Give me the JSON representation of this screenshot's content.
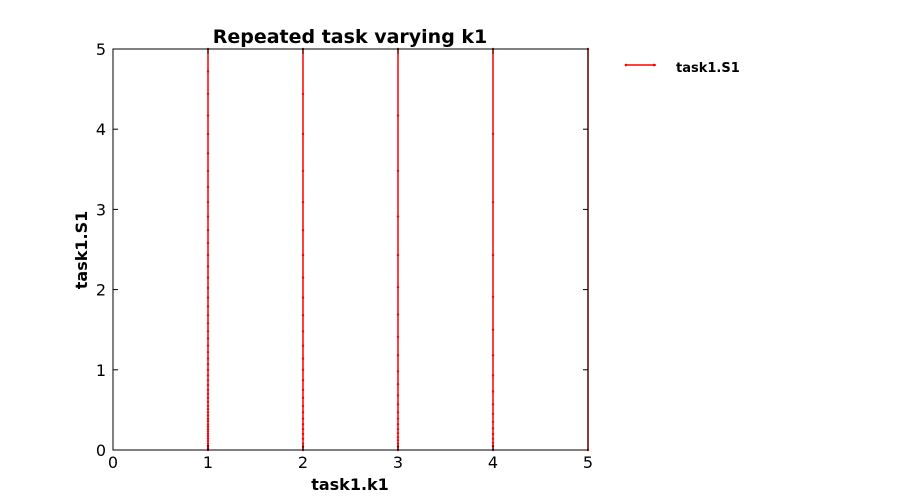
{
  "chart_data": {
    "type": "line",
    "title": "Repeated task varying k1",
    "xlabel": "task1.k1",
    "ylabel": "task1.S1",
    "xlim": [
      0,
      5
    ],
    "ylim": [
      0,
      5
    ],
    "xticks": [
      0,
      1,
      2,
      3,
      4,
      5
    ],
    "yticks": [
      0,
      1,
      2,
      3,
      4,
      5
    ],
    "xtick_labels": [
      "0",
      "1",
      "2",
      "3",
      "4",
      "5"
    ],
    "ytick_labels": [
      "0",
      "1",
      "2",
      "3",
      "4",
      "5"
    ],
    "grid": false,
    "legend_position": "outside-right",
    "series": [
      {
        "name": "task1.S1",
        "color": "#ff0000",
        "marker": "point",
        "segments": [
          {
            "k1": 1,
            "S1": [
              5.0,
              4.72,
              4.44,
              4.17,
              3.94,
              3.7,
              3.48,
              3.28,
              3.09,
              2.91,
              2.74,
              2.58,
              2.43,
              2.29,
              2.15,
              2.02,
              1.9,
              1.79,
              1.68,
              1.58,
              1.48,
              1.39,
              1.3,
              1.22,
              1.14,
              1.07,
              1.0,
              0.93,
              0.87,
              0.81,
              0.75,
              0.7,
              0.65,
              0.6,
              0.55,
              0.51,
              0.47,
              0.43,
              0.39,
              0.36,
              0.32,
              0.29,
              0.26,
              0.23,
              0.2,
              0.17,
              0.14,
              0.11,
              0.08,
              0.05,
              0.02,
              0.0
            ]
          },
          {
            "k1": 2,
            "S1": [
              5.0,
              4.44,
              3.94,
              3.48,
              3.09,
              2.74,
              2.43,
              2.15,
              1.9,
              1.68,
              1.48,
              1.3,
              1.14,
              1.0,
              0.87,
              0.75,
              0.65,
              0.55,
              0.47,
              0.39,
              0.32,
              0.26,
              0.2,
              0.14,
              0.08,
              0.04,
              0.0
            ]
          },
          {
            "k1": 3,
            "S1": [
              5.0,
              4.17,
              3.48,
              2.91,
              2.43,
              2.03,
              1.69,
              1.41,
              1.18,
              0.98,
              0.82,
              0.68,
              0.57,
              0.47,
              0.39,
              0.32,
              0.26,
              0.21,
              0.16,
              0.12,
              0.08,
              0.04,
              0.0
            ]
          },
          {
            "k1": 4,
            "S1": [
              5.0,
              3.94,
              3.09,
              2.43,
              1.91,
              1.5,
              1.18,
              0.93,
              0.73,
              0.57,
              0.45,
              0.35,
              0.27,
              0.2,
              0.14,
              0.09,
              0.05,
              0.0
            ]
          },
          {
            "k1": 5,
            "S1": [
              5.0,
              0.0
            ]
          }
        ]
      }
    ]
  }
}
